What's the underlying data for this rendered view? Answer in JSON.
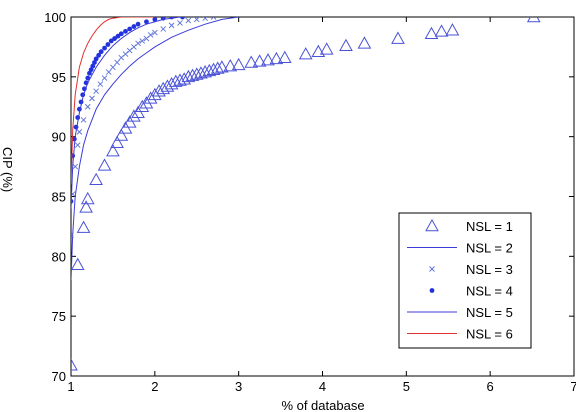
{
  "chart_data": {
    "type": "scatter",
    "title": "",
    "xlabel": "% of database",
    "ylabel": "CIP (%)",
    "xlim": [
      1,
      7
    ],
    "ylim": [
      70,
      100
    ],
    "xticks": [
      1,
      2,
      3,
      4,
      5,
      6,
      7
    ],
    "yticks": [
      70,
      75,
      80,
      85,
      90,
      95,
      100
    ],
    "grid": false,
    "legend_position": "bottom-right",
    "series": [
      {
        "name": "NSL = 1",
        "marker": "triangle",
        "color": "#4a52d6",
        "x": [
          1.0,
          1.08,
          1.15,
          1.18,
          1.2,
          1.3,
          1.4,
          1.5,
          1.55,
          1.6,
          1.65,
          1.7,
          1.75,
          1.8,
          1.85,
          1.9,
          1.95,
          2.0,
          2.05,
          2.1,
          2.15,
          2.2,
          2.25,
          2.3,
          2.35,
          2.4,
          2.45,
          2.5,
          2.55,
          2.6,
          2.65,
          2.7,
          2.75,
          2.8,
          2.9,
          3.0,
          3.15,
          3.25,
          3.35,
          3.45,
          3.55,
          3.8,
          3.95,
          4.05,
          4.28,
          4.5,
          4.9,
          5.3,
          5.42,
          5.55,
          6.52
        ],
        "y": [
          70.9,
          79.3,
          82.4,
          84.1,
          84.8,
          86.4,
          87.6,
          88.8,
          89.5,
          90.1,
          90.7,
          91.2,
          91.7,
          92.0,
          92.5,
          92.8,
          93.2,
          93.5,
          93.8,
          94.0,
          94.2,
          94.4,
          94.6,
          94.7,
          94.8,
          95.0,
          95.1,
          95.2,
          95.3,
          95.4,
          95.5,
          95.6,
          95.7,
          95.8,
          95.9,
          96.0,
          96.2,
          96.3,
          96.4,
          96.5,
          96.6,
          96.9,
          97.1,
          97.3,
          97.6,
          97.8,
          98.2,
          98.6,
          98.8,
          98.9,
          100.0
        ]
      },
      {
        "name": "NSL = 2",
        "marker": "line",
        "color": "#3b3bd8",
        "x": [
          1.0,
          1.02,
          1.05,
          1.1,
          1.15,
          1.2,
          1.3,
          1.4,
          1.5,
          1.6,
          1.7,
          1.8,
          1.9,
          2.0,
          2.2,
          2.4,
          2.6,
          2.8,
          3.0
        ],
        "y": [
          78.0,
          81.8,
          85.0,
          87.5,
          89.3,
          90.5,
          92.3,
          93.5,
          94.4,
          95.2,
          95.9,
          96.5,
          97.0,
          97.5,
          98.3,
          98.9,
          99.4,
          99.8,
          100.0
        ]
      },
      {
        "name": "NSL = 3",
        "marker": "x",
        "color": "#5a70d8",
        "x": [
          1.0,
          1.02,
          1.05,
          1.08,
          1.1,
          1.15,
          1.2,
          1.25,
          1.3,
          1.35,
          1.4,
          1.45,
          1.5,
          1.55,
          1.6,
          1.65,
          1.7,
          1.75,
          1.8,
          1.85,
          1.9,
          1.95,
          2.0,
          2.1,
          2.2,
          2.3,
          2.4,
          2.5,
          2.6,
          2.7
        ],
        "y": [
          81.8,
          85.2,
          87.5,
          89.3,
          90.4,
          91.4,
          92.5,
          93.2,
          93.8,
          94.4,
          94.9,
          95.4,
          95.8,
          96.2,
          96.6,
          96.9,
          97.2,
          97.5,
          97.8,
          98.0,
          98.2,
          98.5,
          98.7,
          99.0,
          99.3,
          99.5,
          99.7,
          99.8,
          99.9,
          100.0
        ]
      },
      {
        "name": "NSL = 4",
        "marker": "dot",
        "color": "#2233dd",
        "x": [
          1.0,
          1.02,
          1.04,
          1.06,
          1.08,
          1.1,
          1.12,
          1.14,
          1.16,
          1.18,
          1.2,
          1.22,
          1.24,
          1.26,
          1.28,
          1.3,
          1.33,
          1.36,
          1.4,
          1.44,
          1.48,
          1.52,
          1.56,
          1.6,
          1.65,
          1.7,
          1.75,
          1.8,
          1.9,
          2.0,
          2.1,
          2.2,
          2.33
        ],
        "y": [
          84.6,
          88.4,
          89.8,
          90.8,
          91.6,
          92.3,
          92.9,
          93.5,
          94.0,
          94.5,
          94.9,
          95.3,
          95.6,
          95.9,
          96.2,
          96.5,
          96.8,
          97.1,
          97.4,
          97.7,
          98.0,
          98.2,
          98.4,
          98.6,
          98.8,
          99.0,
          99.2,
          99.4,
          99.6,
          99.8,
          99.9,
          100.0,
          100.0
        ]
      },
      {
        "name": "NSL = 5",
        "marker": "line",
        "color": "#3b3bd8",
        "x": [
          1.0,
          1.02,
          1.05,
          1.1,
          1.15,
          1.2,
          1.3,
          1.4,
          1.5,
          1.6,
          1.7,
          1.8,
          1.9,
          2.0,
          2.1,
          2.2,
          2.3
        ],
        "y": [
          84.0,
          87.5,
          90.0,
          92.0,
          93.5,
          94.5,
          95.8,
          96.8,
          97.6,
          98.2,
          98.7,
          99.1,
          99.4,
          99.6,
          99.8,
          99.9,
          100.0
        ]
      },
      {
        "name": "NSL = 6",
        "marker": "line",
        "color": "#e03030",
        "x": [
          1.0,
          1.02,
          1.05,
          1.1,
          1.15,
          1.2,
          1.25,
          1.3,
          1.35,
          1.4,
          1.45,
          1.5,
          1.6,
          1.7,
          2.0
        ],
        "y": [
          86.0,
          90.5,
          93.5,
          95.8,
          97.0,
          97.8,
          98.4,
          98.9,
          99.3,
          99.6,
          99.8,
          99.9,
          100.0,
          100.0,
          100.0
        ]
      }
    ]
  }
}
